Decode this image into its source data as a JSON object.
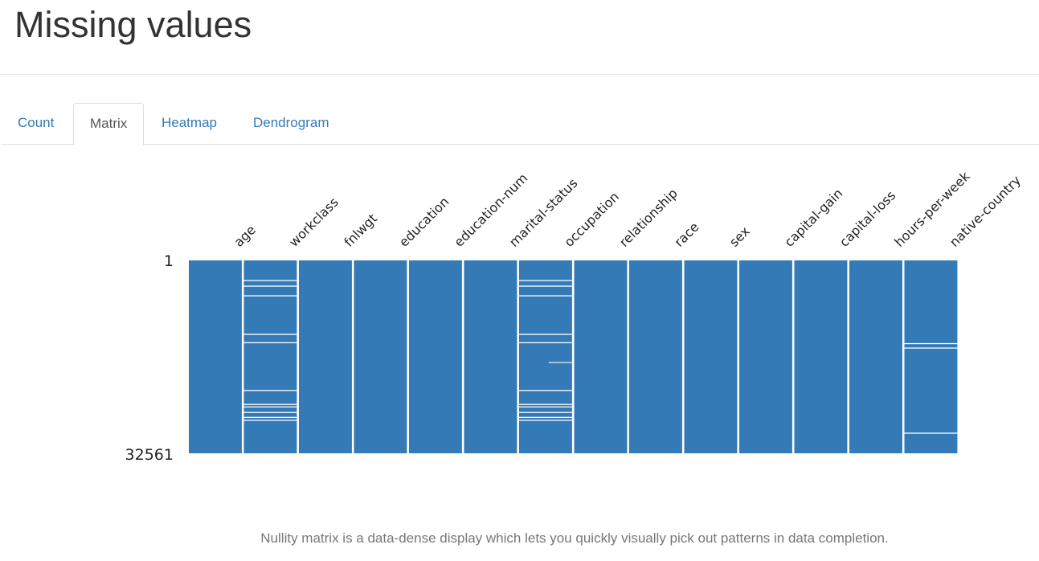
{
  "page": {
    "title": "Missing values",
    "caption": "Nullity matrix is a data-dense display which lets you quickly visually pick out patterns in data completion."
  },
  "tabs": [
    {
      "label": "Count",
      "active": false
    },
    {
      "label": "Matrix",
      "active": true
    },
    {
      "label": "Heatmap",
      "active": false
    },
    {
      "label": "Dendrogram",
      "active": false
    }
  ],
  "colors": {
    "present": "#337ab7",
    "missing": "#ffffff",
    "link": "#337ab7",
    "active_tab_text": "#555555"
  },
  "chart_data": {
    "type": "heatmap",
    "row_range": [
      1,
      32561
    ],
    "row_tick_labels": [
      "1",
      "32561"
    ],
    "columns": [
      {
        "name": "age",
        "missing_rows": []
      },
      {
        "name": "workclass",
        "missing_rows": [
          3390,
          4340,
          5970,
          12480,
          13890,
          21950,
          24310,
          24720,
          25670,
          26500,
          26980
        ]
      },
      {
        "name": "fnlwgt",
        "missing_rows": []
      },
      {
        "name": "education",
        "missing_rows": []
      },
      {
        "name": "education-num",
        "missing_rows": []
      },
      {
        "name": "marital-status",
        "missing_rows": []
      },
      {
        "name": "occupation",
        "missing_rows": [
          3390,
          4340,
          5970,
          12480,
          13890,
          21950,
          24310,
          24720,
          25670,
          26500,
          26980
        ],
        "partial_missing_rows": [
          17230
        ]
      },
      {
        "name": "relationship",
        "missing_rows": []
      },
      {
        "name": "race",
        "missing_rows": []
      },
      {
        "name": "sex",
        "missing_rows": []
      },
      {
        "name": "capital-gain",
        "missing_rows": []
      },
      {
        "name": "capital-loss",
        "missing_rows": []
      },
      {
        "name": "hours-per-week",
        "missing_rows": []
      },
      {
        "name": "native-country",
        "missing_rows": [
          14040,
          14790,
          29160
        ]
      }
    ]
  }
}
